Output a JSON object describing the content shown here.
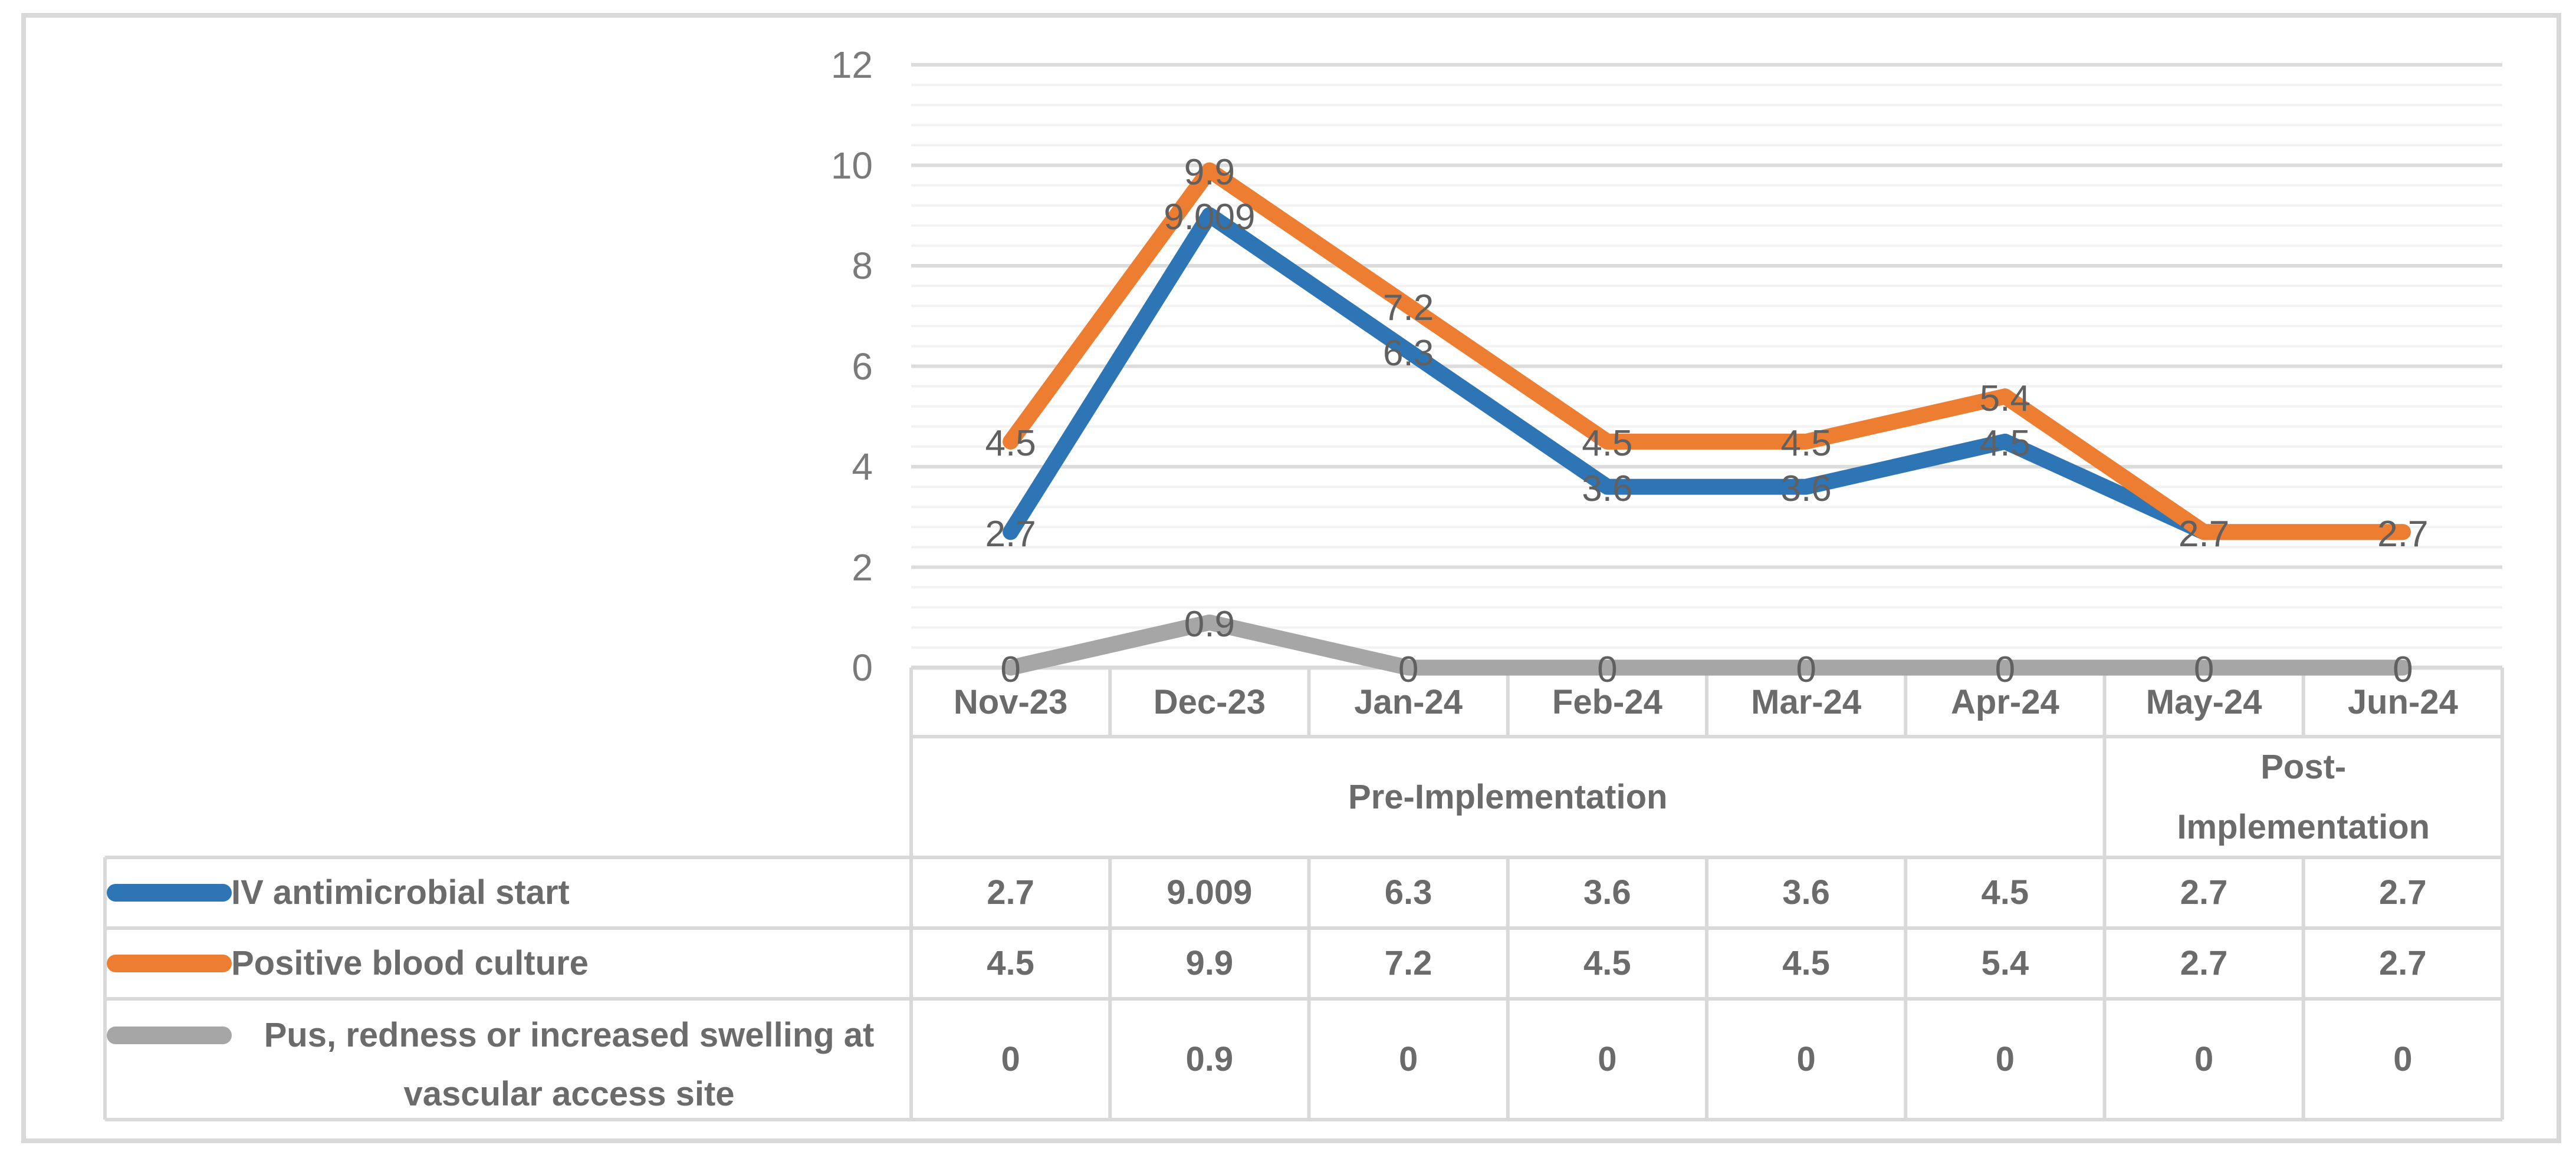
{
  "chart_data": {
    "type": "line",
    "title": "",
    "categories": [
      "Nov-23",
      "Dec-23",
      "Jan-24",
      "Feb-24",
      "Mar-24",
      "Apr-24",
      "May-24",
      "Jun-24"
    ],
    "series": [
      {
        "name": "IV antimicrobial start",
        "color": "#2E75B6",
        "values": [
          2.7,
          9.009,
          6.3,
          3.6,
          3.6,
          4.5,
          2.7,
          2.7
        ],
        "labels": [
          "2.7",
          "9.009",
          "6.3",
          "3.6",
          "3.6",
          "4.5",
          "2.7",
          "2.7"
        ]
      },
      {
        "name": "Positive blood culture",
        "color": "#ED7D31",
        "values": [
          4.5,
          9.9,
          7.2,
          4.5,
          4.5,
          5.4,
          2.7,
          2.7
        ],
        "labels": [
          "4.5",
          "9.9",
          "7.2",
          "4.5",
          "4.5",
          "5.4",
          "2.7",
          "2.7"
        ]
      },
      {
        "name": "Pus, redness or increased swelling at vascular access site",
        "color": "#A6A6A6",
        "values": [
          0,
          0.9,
          0,
          0,
          0,
          0,
          0,
          0
        ],
        "labels": [
          "0",
          "0.9",
          "0",
          "0",
          "0",
          "0",
          "0",
          "0"
        ]
      }
    ],
    "ylim": [
      0,
      12
    ],
    "yticks": [
      "0",
      "2",
      "4",
      "6",
      "8",
      "10",
      "12"
    ],
    "grid": {
      "minor_step": 0.4,
      "major_step": 2,
      "minor_on": true,
      "major_on": true
    },
    "legend_position": "table-left-column",
    "data_label_position": "center",
    "phase_groups": [
      {
        "label": "Pre-Implementation",
        "lines": [
          "Pre-Implementation"
        ],
        "span": 6
      },
      {
        "label": "Post-Implementation",
        "lines": [
          "Post-",
          "Implementation"
        ],
        "span": 2
      }
    ],
    "legend_display": [
      {
        "lines": [
          "IV antimicrobial start"
        ],
        "align": "left"
      },
      {
        "lines": [
          "Positive blood culture"
        ],
        "align": "left"
      },
      {
        "lines": [
          "Pus, redness or increased swelling at",
          "vascular access site"
        ],
        "align": "center"
      }
    ],
    "colors": {
      "grid_minor": "#F2F2F2",
      "grid_major": "#DCDCDC",
      "axis_line": "#D9D9D9",
      "table_border": "#D9D9D9",
      "figure_border": "#D9D9D9",
      "tick_text": "#7A7A7A",
      "data_label_text": "#606060",
      "table_text": "#6B6B6B"
    }
  }
}
